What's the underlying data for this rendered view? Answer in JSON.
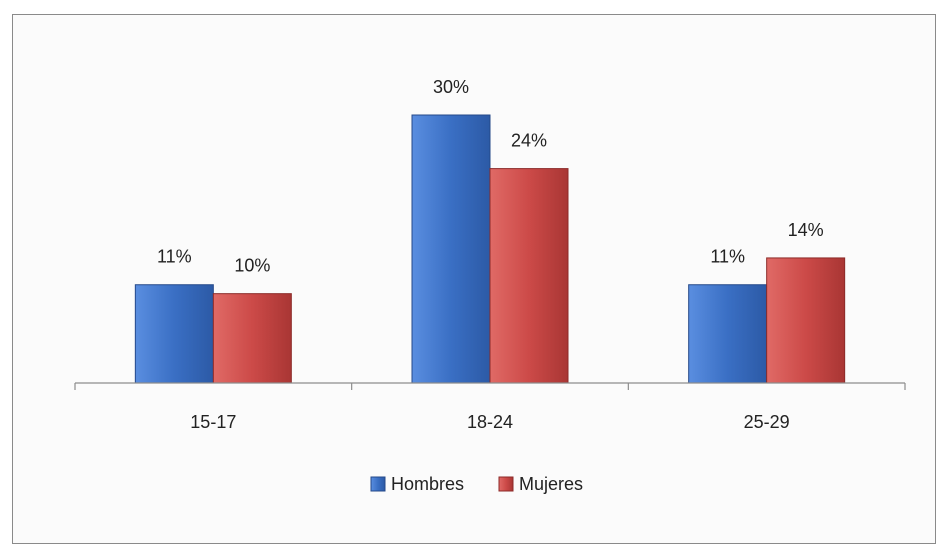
{
  "chart_data": {
    "type": "bar",
    "categories": [
      "15-17",
      "18-24",
      "25-29"
    ],
    "series": [
      {
        "name": "Hombres",
        "values": [
          11,
          30,
          11
        ],
        "labels": [
          "11%",
          "30%",
          "11%"
        ]
      },
      {
        "name": "Mujeres",
        "values": [
          10,
          24,
          14
        ],
        "labels": [
          "10%",
          "24%",
          "14%"
        ]
      }
    ],
    "unit": "%",
    "title": "",
    "xlabel": "",
    "ylabel": "",
    "ylim": [
      0,
      30
    ],
    "grid": false,
    "legend_position": "bottom-center",
    "colors": {
      "Hombres": "#3a6fc4",
      "Mujeres": "#cc4a48"
    }
  }
}
